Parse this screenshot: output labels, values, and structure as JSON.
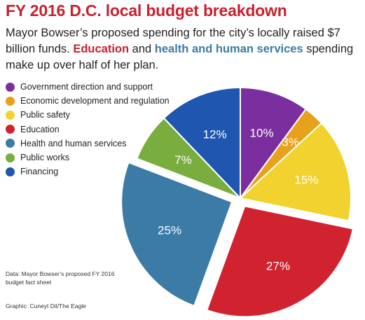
{
  "header": {
    "title": "FY 2016 D.C. local budget breakdown",
    "subtitle_pre": "Mayor Bowser’s proposed spending for the city’s locally raised $7 billion funds. ",
    "subtitle_edu": "Education",
    "subtitle_mid": " and ",
    "subtitle_hhs": "health and human services",
    "subtitle_post": " spending make up over half of her plan."
  },
  "footer": {
    "source": "Data: Mayor Bowser’s proposed FY 2016 budget fact sheet",
    "credit": "Graphic: Cuneyt Dil/The Eagle"
  },
  "chart_data": {
    "type": "pie",
    "title": "FY 2016 D.C. local budget breakdown",
    "legend_position": "left",
    "slices": [
      {
        "name": "Government direction and support",
        "value": 10,
        "label": "10%",
        "color": "#7b2f9e",
        "exploded": false
      },
      {
        "name": "Economic development and regulation",
        "value": 3,
        "label": "3%",
        "color": "#e7a11a",
        "exploded": false
      },
      {
        "name": "Public safety",
        "value": 15,
        "label": "15%",
        "color": "#f2d22f",
        "exploded": false
      },
      {
        "name": "Education",
        "value": 27,
        "label": "27%",
        "color": "#d0222f",
        "exploded": true
      },
      {
        "name": "Health and human services",
        "value": 25,
        "label": "25%",
        "color": "#3b7ba6",
        "exploded": true
      },
      {
        "name": "Public works",
        "value": 7,
        "label": "7%",
        "color": "#79ae3f",
        "exploded": false
      },
      {
        "name": "Financing",
        "value": 12,
        "label": "12%",
        "color": "#1e56b0",
        "exploded": false
      }
    ]
  }
}
